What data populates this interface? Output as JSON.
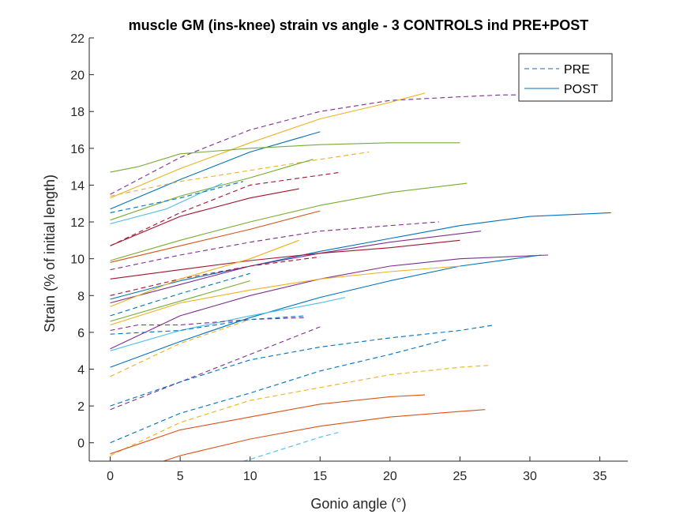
{
  "chart_data": {
    "type": "line",
    "title": "muscle GM (ins-knee) strain vs angle - 3 CONTROLS ind PRE+POST",
    "xlabel": "Gonio angle (°)",
    "ylabel": "Strain (% of initial length)",
    "xlim": [
      -1.5,
      37
    ],
    "ylim": [
      -1,
      22
    ],
    "xticks": [
      0,
      5,
      10,
      15,
      20,
      25,
      30,
      35
    ],
    "yticks": [
      0,
      2,
      4,
      6,
      8,
      10,
      12,
      14,
      16,
      18,
      20,
      22
    ],
    "grid": false,
    "legend": {
      "placement": "top-right",
      "entries": [
        {
          "label": "PRE",
          "style": "dashed",
          "color": "#0072BD"
        },
        {
          "label": "POST",
          "style": "solid",
          "color": "#0072BD"
        }
      ]
    },
    "series": [
      {
        "style": "dashed",
        "color": "#7E2F8E",
        "x": [
          0,
          5,
          10,
          15,
          20,
          25,
          28,
          30
        ],
        "y": [
          13.5,
          15.5,
          17.0,
          18.0,
          18.6,
          18.8,
          18.9,
          18.9
        ]
      },
      {
        "style": "solid",
        "color": "#EDB120",
        "x": [
          0,
          5,
          10,
          15,
          20,
          22.5
        ],
        "y": [
          13.3,
          14.9,
          16.3,
          17.6,
          18.5,
          19.0
        ]
      },
      {
        "style": "solid",
        "color": "#0072BD",
        "x": [
          0,
          5,
          10,
          15
        ],
        "y": [
          12.7,
          14.3,
          15.8,
          16.9
        ]
      },
      {
        "style": "solid",
        "color": "#77AC30",
        "x": [
          0,
          2,
          5,
          10,
          15,
          20,
          25
        ],
        "y": [
          14.7,
          15.0,
          15.7,
          16.0,
          16.2,
          16.3,
          16.3
        ]
      },
      {
        "style": "dashed",
        "color": "#EDB120",
        "x": [
          0,
          5,
          10,
          15,
          18.5
        ],
        "y": [
          13.4,
          14.2,
          14.8,
          15.4,
          15.8
        ]
      },
      {
        "style": "dashed",
        "color": "#A2142F",
        "x": [
          0,
          5,
          10,
          16.5
        ],
        "y": [
          10.7,
          12.5,
          14.0,
          14.7
        ]
      },
      {
        "style": "solid",
        "color": "#77AC30",
        "x": [
          0,
          5,
          10,
          14.5
        ],
        "y": [
          12.1,
          13.4,
          14.4,
          15.4
        ]
      },
      {
        "style": "solid",
        "color": "#4DBEEE",
        "x": [
          0,
          4,
          8
        ],
        "y": [
          11.9,
          12.7,
          14.1
        ]
      },
      {
        "style": "dashed",
        "color": "#0072BD",
        "x": [
          0,
          5,
          9.5
        ],
        "y": [
          12.5,
          13.3,
          14.2
        ]
      },
      {
        "style": "solid",
        "color": "#A2142F",
        "x": [
          0,
          5,
          10,
          13.5
        ],
        "y": [
          10.7,
          12.3,
          13.3,
          13.8
        ]
      },
      {
        "style": "solid",
        "color": "#77AC30",
        "x": [
          0,
          5,
          10,
          15,
          20,
          25.5
        ],
        "y": [
          9.9,
          11.0,
          12.0,
          12.9,
          13.6,
          14.1
        ]
      },
      {
        "style": "solid",
        "color": "#0072BD",
        "x": [
          0,
          5,
          10,
          15,
          20,
          25,
          30,
          35.8
        ],
        "y": [
          7.8,
          8.8,
          9.6,
          10.4,
          11.1,
          11.8,
          12.3,
          12.5
        ]
      },
      {
        "style": "solid",
        "color": "#D95319",
        "x": [
          0,
          5,
          10,
          15
        ],
        "y": [
          9.8,
          10.7,
          11.6,
          12.6
        ]
      },
      {
        "style": "dashed",
        "color": "#7E2F8E",
        "x": [
          0,
          5,
          10,
          15,
          20,
          23.5
        ],
        "y": [
          9.4,
          10.2,
          10.9,
          11.5,
          11.8,
          12.0
        ]
      },
      {
        "style": "solid",
        "color": "#7E2F8E",
        "x": [
          0,
          5,
          10,
          15,
          20,
          26.5
        ],
        "y": [
          7.6,
          8.6,
          9.6,
          10.3,
          10.9,
          11.5
        ]
      },
      {
        "style": "solid",
        "color": "#A2142F",
        "x": [
          0,
          5,
          10,
          15,
          20,
          25
        ],
        "y": [
          8.9,
          9.4,
          9.9,
          10.3,
          10.6,
          11.0
        ]
      },
      {
        "style": "solid",
        "color": "#7E2F8E",
        "x": [
          0,
          5,
          10,
          15,
          20,
          25,
          31.3
        ],
        "y": [
          5.1,
          6.9,
          8.0,
          8.9,
          9.6,
          10.0,
          10.2
        ]
      },
      {
        "style": "solid",
        "color": "#0072BD",
        "x": [
          0,
          5,
          10,
          15,
          20,
          25,
          30.8
        ],
        "y": [
          4.1,
          5.5,
          6.8,
          7.9,
          8.8,
          9.6,
          10.2
        ]
      },
      {
        "style": "solid",
        "color": "#EDB120",
        "x": [
          0,
          5,
          10,
          15,
          20,
          25
        ],
        "y": [
          6.4,
          7.6,
          8.3,
          8.9,
          9.3,
          9.6
        ]
      },
      {
        "style": "dashed",
        "color": "#A2142F",
        "x": [
          0,
          5,
          10,
          15
        ],
        "y": [
          8.0,
          8.9,
          9.6,
          10.1
        ]
      },
      {
        "style": "solid",
        "color": "#EDB120",
        "x": [
          0,
          5,
          10,
          13.5
        ],
        "y": [
          7.4,
          8.9,
          10.0,
          11.0
        ]
      },
      {
        "style": "dashed",
        "color": "#0072BD",
        "x": [
          0,
          5,
          10
        ],
        "y": [
          6.9,
          8.1,
          9.2
        ]
      },
      {
        "style": "solid",
        "color": "#4DBEEE",
        "x": [
          0,
          5,
          10,
          15,
          16.8
        ],
        "y": [
          5.0,
          6.1,
          6.9,
          7.6,
          7.9
        ]
      },
      {
        "style": "dashed",
        "color": "#7E2F8E",
        "x": [
          0,
          2,
          5,
          10,
          14
        ],
        "y": [
          6.1,
          6.4,
          6.4,
          6.7,
          6.8
        ]
      },
      {
        "style": "dashed",
        "color": "#0072BD",
        "x": [
          0,
          5,
          10,
          14
        ],
        "y": [
          5.9,
          6.1,
          6.7,
          6.9
        ]
      },
      {
        "style": "solid",
        "color": "#77AC30",
        "x": [
          0,
          5,
          10
        ],
        "y": [
          6.6,
          7.7,
          8.8
        ]
      },
      {
        "style": "dashed",
        "color": "#EDB120",
        "x": [
          0,
          5,
          10
        ],
        "y": [
          3.6,
          5.4,
          6.7
        ]
      },
      {
        "style": "dashed",
        "color": "#7E2F8E",
        "x": [
          0,
          5,
          10,
          15
        ],
        "y": [
          1.8,
          3.3,
          4.8,
          6.3
        ]
      },
      {
        "style": "dashed",
        "color": "#0072BD",
        "x": [
          0,
          5,
          10,
          15,
          20,
          25,
          27.5
        ],
        "y": [
          2.0,
          3.3,
          4.5,
          5.2,
          5.7,
          6.1,
          6.4
        ]
      },
      {
        "style": "dashed",
        "color": "#0072BD",
        "x": [
          0,
          5,
          10,
          15,
          20,
          24
        ],
        "y": [
          0.0,
          1.6,
          2.7,
          3.9,
          4.8,
          5.6
        ]
      },
      {
        "style": "dashed",
        "color": "#EDB120",
        "x": [
          0,
          5,
          10,
          15,
          20,
          25,
          27
        ],
        "y": [
          -0.7,
          1.1,
          2.3,
          3.0,
          3.7,
          4.1,
          4.2
        ]
      },
      {
        "style": "solid",
        "color": "#D95319",
        "x": [
          0,
          5,
          10,
          15,
          20,
          22.5
        ],
        "y": [
          -0.6,
          0.7,
          1.4,
          2.1,
          2.5,
          2.6
        ]
      },
      {
        "style": "solid",
        "color": "#D95319",
        "x": [
          3.8,
          5,
          10,
          15,
          20,
          25,
          26.8
        ],
        "y": [
          -1.0,
          -0.7,
          0.2,
          0.9,
          1.4,
          1.7,
          1.8
        ]
      },
      {
        "style": "dashed",
        "color": "#4DBEEE",
        "x": [
          9.5,
          10,
          15,
          16.5
        ],
        "y": [
          -1.0,
          -0.9,
          0.3,
          0.6
        ]
      }
    ]
  }
}
